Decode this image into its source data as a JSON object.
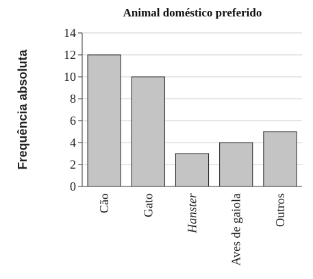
{
  "chart_data": {
    "type": "bar",
    "title": "Animal doméstico preferido",
    "xlabel": "",
    "ylabel": "Frequência absoluta",
    "categories": [
      "Cão",
      "Gato",
      "Hanster",
      "Aves de gaiola",
      "Outros"
    ],
    "italic_categories": [
      "Hanster"
    ],
    "values": [
      12,
      10,
      3,
      4,
      5
    ],
    "ylim": [
      0,
      14
    ],
    "yticks": [
      "0",
      "2",
      "4",
      "6",
      "8",
      "10",
      "12",
      "14"
    ],
    "grid": true,
    "legend": "none",
    "colors": {
      "bar_fill": "#c4c4c4",
      "bar_stroke": "#222222",
      "grid": "#cfcfcf",
      "axis": "#333333"
    }
  }
}
